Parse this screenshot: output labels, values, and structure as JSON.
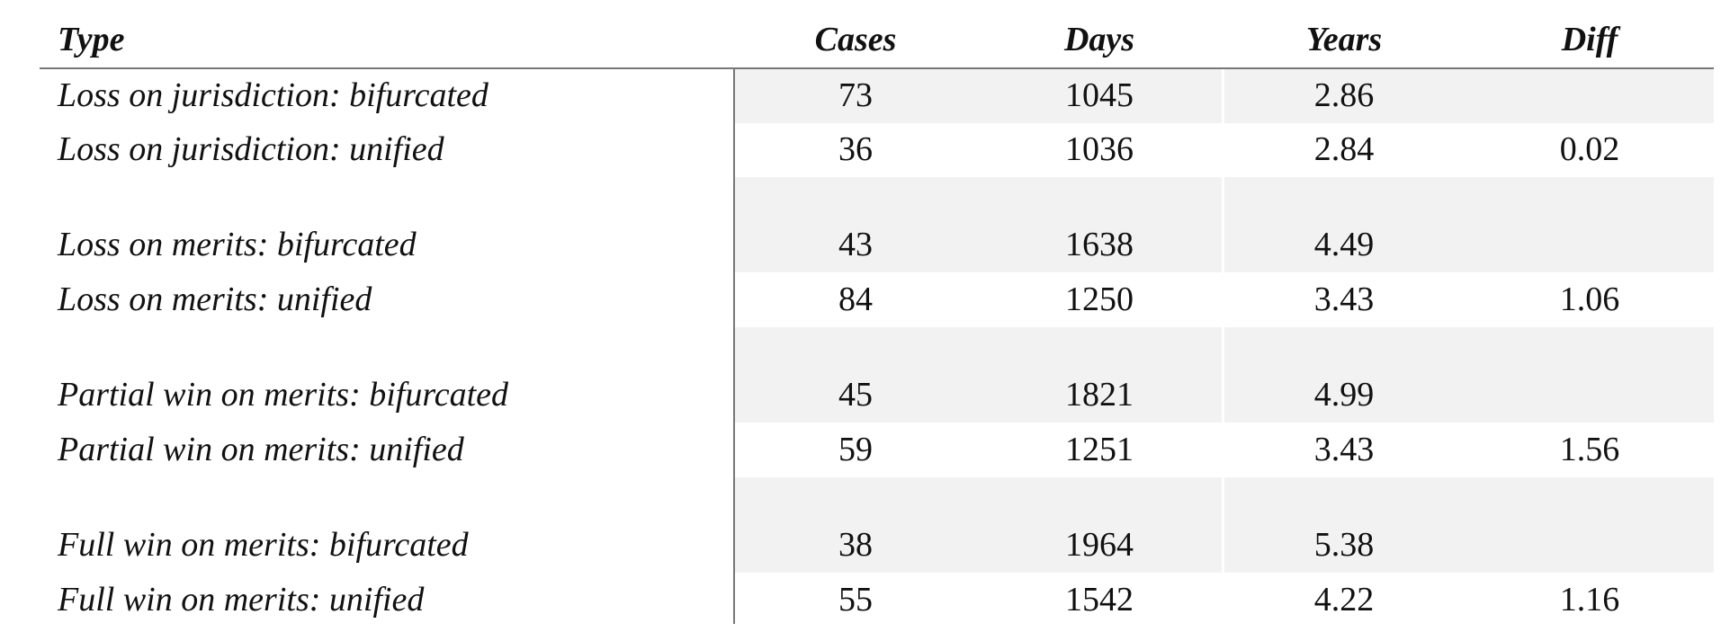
{
  "table": {
    "header": [
      "Type",
      "Cases",
      "Days",
      "Years",
      "Diff"
    ],
    "rows": [
      [
        "Loss on jurisdiction: bifurcated",
        "73",
        "1045",
        "2.86"
      ],
      [
        "Loss on jurisdiction: unified",
        "36",
        "1036",
        "2.84",
        "0.02"
      ],
      [
        "Loss on merits: bifurcated",
        "43",
        "1638",
        "4.49"
      ],
      [
        "Loss on merits: unified",
        "84",
        "1250",
        "3.43",
        "1.06"
      ],
      [
        "Partial win on merits: bifurcated",
        "45",
        "1821",
        "4.99"
      ],
      [
        "Partial win on merits: unified",
        "59",
        "1251",
        "3.43",
        "1.56"
      ],
      [
        "Full win on merits: bifurcated",
        "38",
        "1964",
        "5.38"
      ],
      [
        "Full win on merits: unified",
        "55",
        "1542",
        "4.22",
        "1.16"
      ]
    ]
  }
}
